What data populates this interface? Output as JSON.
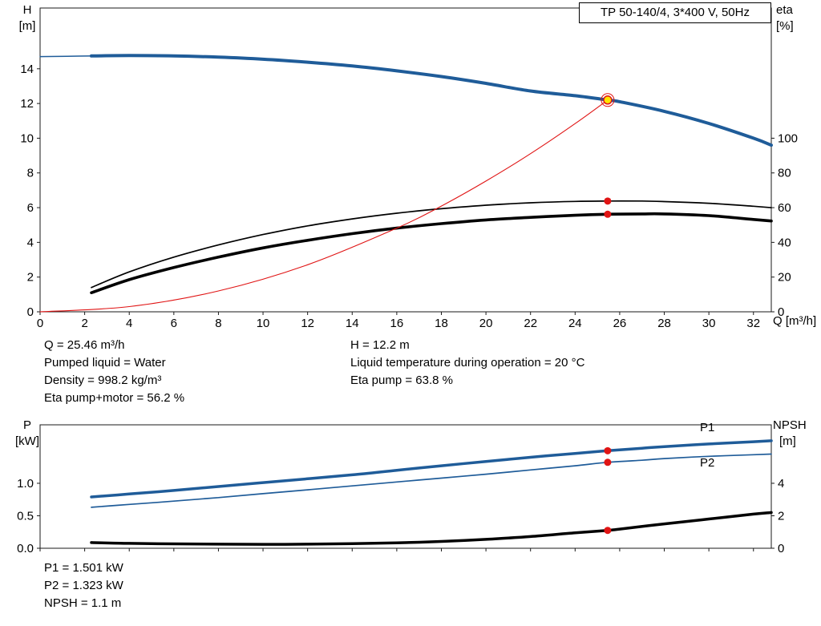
{
  "accent_colors": {
    "blue": "#1f5c99",
    "red": "#e01414",
    "black": "#000000",
    "marker_yellow": "#ffe400",
    "axis": "#1a1a1a"
  },
  "title_box": {
    "label": "TP 50-140/4, 3*400 V, 50Hz"
  },
  "axis_headers": {
    "top_left_1": "H",
    "top_left_2": "[m]",
    "top_right_1": "eta",
    "top_right_2": "[%]",
    "x_label": "Q [m³/h]",
    "bottom_left_1": "P",
    "bottom_left_2": "[kW]",
    "bottom_right_1": "NPSH",
    "bottom_right_2": "[m]"
  },
  "info_block": {
    "left": [
      "Q = 25.46 m³/h",
      "Pumped liquid = Water",
      "Density = 998.2 kg/m³",
      "Eta pump+motor = 56.2 %"
    ],
    "right": [
      "H = 12.2 m",
      "Liquid temperature during operation = 20 °C",
      "Eta pump = 63.8 %"
    ]
  },
  "result_block": {
    "lines": [
      "P1 = 1.501 kW",
      "P2 = 1.323 kW",
      "NPSH = 1.1 m"
    ]
  },
  "chart_data": [
    {
      "id": "qh-eta-chart",
      "type": "line",
      "title": "TP 50-140/4, 3*400 V, 50Hz",
      "xlabel": "Q [m³/h]",
      "ylabel_left": "H [m]",
      "ylabel_right": "eta [%]",
      "xlim": [
        0,
        32.8
      ],
      "ylim_left": [
        0,
        17.5
      ],
      "ylim_right": [
        0,
        175
      ],
      "grid": false,
      "x_ticks": [
        [
          0,
          "0"
        ],
        [
          2,
          "2"
        ],
        [
          4,
          "4"
        ],
        [
          6,
          "6"
        ],
        [
          8,
          "8"
        ],
        [
          10,
          "10"
        ],
        [
          12,
          "12"
        ],
        [
          14,
          "14"
        ],
        [
          16,
          "16"
        ],
        [
          18,
          "18"
        ],
        [
          20,
          "20"
        ],
        [
          22,
          "22"
        ],
        [
          24,
          "24"
        ],
        [
          26,
          "26"
        ],
        [
          28,
          "28"
        ],
        [
          30,
          "30"
        ],
        [
          32,
          "32"
        ]
      ],
      "left_ticks": [
        [
          0,
          "0"
        ],
        [
          2,
          "2"
        ],
        [
          4,
          "4"
        ],
        [
          6,
          "6"
        ],
        [
          8,
          "8"
        ],
        [
          10,
          "10"
        ],
        [
          12,
          "12"
        ],
        [
          14,
          "14"
        ]
      ],
      "right_ticks": [
        [
          0,
          "0"
        ],
        [
          20,
          "20"
        ],
        [
          40,
          "40"
        ],
        [
          60,
          "60"
        ],
        [
          80,
          "80"
        ],
        [
          100,
          "100"
        ]
      ],
      "series": [
        {
          "name": "qh-curve-lead",
          "color": "#1f5c99",
          "width": 1.5,
          "axis": "left",
          "points": [
            [
              0,
              14.7
            ],
            [
              1.2,
              14.72
            ],
            [
              2.5,
              14.74
            ]
          ]
        },
        {
          "name": "qh-curve",
          "color": "#1f5c99",
          "width": 4,
          "axis": "left",
          "points": [
            [
              2.3,
              14.74
            ],
            [
              4,
              14.76
            ],
            [
              6,
              14.74
            ],
            [
              8,
              14.67
            ],
            [
              10,
              14.55
            ],
            [
              12,
              14.38
            ],
            [
              14,
              14.16
            ],
            [
              16,
              13.88
            ],
            [
              18,
              13.55
            ],
            [
              20,
              13.16
            ],
            [
              22,
              12.72
            ],
            [
              24,
              12.45
            ],
            [
              25.46,
              12.2
            ],
            [
              26,
              12.1
            ],
            [
              28,
              11.55
            ],
            [
              30,
              10.85
            ],
            [
              32,
              10.0
            ],
            [
              32.8,
              9.6
            ]
          ]
        },
        {
          "name": "eta-pump-curve",
          "color": "#000000",
          "width": 1.7,
          "axis": "right",
          "points": [
            [
              2.3,
              14
            ],
            [
              4,
              23
            ],
            [
              6,
              31.5
            ],
            [
              8,
              38.5
            ],
            [
              10,
              44.5
            ],
            [
              12,
              49.5
            ],
            [
              14,
              53.5
            ],
            [
              16,
              56.8
            ],
            [
              18,
              59.4
            ],
            [
              20,
              61.4
            ],
            [
              22,
              62.8
            ],
            [
              24,
              63.6
            ],
            [
              25.46,
              63.8
            ],
            [
              27,
              63.8
            ],
            [
              28,
              63.5
            ],
            [
              30,
              62.5
            ],
            [
              32,
              60.8
            ],
            [
              32.8,
              60
            ]
          ]
        },
        {
          "name": "eta-pump-motor-curve",
          "color": "#000000",
          "width": 3.6,
          "axis": "right",
          "points": [
            [
              2.3,
              11
            ],
            [
              4,
              18.5
            ],
            [
              6,
              25.5
            ],
            [
              8,
              31.5
            ],
            [
              10,
              36.8
            ],
            [
              12,
              41.2
            ],
            [
              14,
              45
            ],
            [
              16,
              48.2
            ],
            [
              18,
              50.8
            ],
            [
              20,
              52.9
            ],
            [
              22,
              54.4
            ],
            [
              24,
              55.6
            ],
            [
              25.46,
              56.2
            ],
            [
              27,
              56.4
            ],
            [
              28,
              56.4
            ],
            [
              30,
              55.4
            ],
            [
              32,
              53.2
            ],
            [
              32.8,
              52.3
            ]
          ]
        },
        {
          "name": "system-curve",
          "color": "#e01414",
          "width": 1.1,
          "axis": "left",
          "points": [
            [
              0,
              0
            ],
            [
              4,
              0.3
            ],
            [
              8,
              1.2
            ],
            [
              12,
              2.71
            ],
            [
              16,
              4.82
            ],
            [
              18,
              6.09
            ],
            [
              20,
              7.53
            ],
            [
              22,
              9.11
            ],
            [
              24,
              10.84
            ],
            [
              25.46,
              12.2
            ]
          ]
        }
      ],
      "markers": [
        {
          "name": "duty-point",
          "x": 25.46,
          "y": 12.2,
          "axis": "left",
          "style": "duty"
        },
        {
          "name": "eta-pump-point",
          "x": 25.46,
          "y": 63.8,
          "axis": "right",
          "style": "dot"
        },
        {
          "name": "eta-pump-motor-point",
          "x": 25.46,
          "y": 56.2,
          "axis": "right",
          "style": "dot"
        }
      ],
      "annotations": []
    },
    {
      "id": "power-npsh-chart",
      "type": "line",
      "title": "",
      "xlabel": "Q [m³/h]",
      "ylabel_left": "P [kW]",
      "ylabel_right": "NPSH [m]",
      "xlim": [
        0,
        32.8
      ],
      "ylim_left": [
        0,
        1.9
      ],
      "ylim_right": [
        0,
        7.6
      ],
      "grid": false,
      "x_ticks": [
        [
          0,
          ""
        ],
        [
          2,
          ""
        ],
        [
          4,
          ""
        ],
        [
          6,
          ""
        ],
        [
          8,
          ""
        ],
        [
          10,
          ""
        ],
        [
          12,
          ""
        ],
        [
          14,
          ""
        ],
        [
          16,
          ""
        ],
        [
          18,
          ""
        ],
        [
          20,
          ""
        ],
        [
          22,
          ""
        ],
        [
          24,
          ""
        ],
        [
          26,
          ""
        ],
        [
          28,
          ""
        ],
        [
          30,
          ""
        ],
        [
          32,
          ""
        ]
      ],
      "left_ticks": [
        [
          0,
          "0.0"
        ],
        [
          0.5,
          "0.5"
        ],
        [
          1,
          "1.0"
        ]
      ],
      "right_ticks": [
        [
          0,
          "0"
        ],
        [
          2,
          "2"
        ],
        [
          4,
          "4"
        ]
      ],
      "series": [
        {
          "name": "p1-curve",
          "color": "#1f5c99",
          "width": 3.5,
          "axis": "left",
          "points": [
            [
              2.3,
              0.79
            ],
            [
              4,
              0.835
            ],
            [
              6,
              0.89
            ],
            [
              8,
              0.95
            ],
            [
              10,
              1.01
            ],
            [
              12,
              1.07
            ],
            [
              14,
              1.13
            ],
            [
              16,
              1.2
            ],
            [
              18,
              1.27
            ],
            [
              20,
              1.335
            ],
            [
              22,
              1.4
            ],
            [
              24,
              1.46
            ],
            [
              25.46,
              1.501
            ],
            [
              27,
              1.54
            ],
            [
              28,
              1.565
            ],
            [
              30,
              1.605
            ],
            [
              32,
              1.64
            ],
            [
              32.8,
              1.655
            ]
          ]
        },
        {
          "name": "p2-curve",
          "color": "#1f5c99",
          "width": 1.7,
          "axis": "left",
          "points": [
            [
              2.3,
              0.63
            ],
            [
              4,
              0.675
            ],
            [
              6,
              0.725
            ],
            [
              8,
              0.78
            ],
            [
              10,
              0.84
            ],
            [
              12,
              0.9
            ],
            [
              14,
              0.96
            ],
            [
              16,
              1.02
            ],
            [
              18,
              1.08
            ],
            [
              20,
              1.14
            ],
            [
              22,
              1.205
            ],
            [
              24,
              1.27
            ],
            [
              25.46,
              1.323
            ],
            [
              27,
              1.355
            ],
            [
              28,
              1.38
            ],
            [
              30,
              1.415
            ],
            [
              32,
              1.44
            ],
            [
              32.8,
              1.45
            ]
          ]
        },
        {
          "name": "npsh-curve",
          "color": "#000000",
          "width": 3.5,
          "axis": "right",
          "points": [
            [
              2.3,
              0.35
            ],
            [
              4,
              0.3
            ],
            [
              6,
              0.27
            ],
            [
              8,
              0.25
            ],
            [
              10,
              0.24
            ],
            [
              12,
              0.25
            ],
            [
              14,
              0.28
            ],
            [
              16,
              0.33
            ],
            [
              18,
              0.42
            ],
            [
              20,
              0.55
            ],
            [
              22,
              0.72
            ],
            [
              24,
              0.95
            ],
            [
              25.46,
              1.1
            ],
            [
              26,
              1.18
            ],
            [
              28,
              1.5
            ],
            [
              30,
              1.8
            ],
            [
              32,
              2.1
            ],
            [
              32.8,
              2.2
            ]
          ]
        }
      ],
      "markers": [
        {
          "name": "p1-point",
          "x": 25.46,
          "y": 1.501,
          "axis": "left",
          "style": "dot"
        },
        {
          "name": "p2-point",
          "x": 25.46,
          "y": 1.323,
          "axis": "left",
          "style": "dot"
        },
        {
          "name": "npsh-point",
          "x": 25.46,
          "y": 1.1,
          "axis": "right",
          "style": "dot"
        }
      ],
      "annotations": [
        {
          "name": "p1-curve-label",
          "text": "P1",
          "x": 29.6,
          "y": 1.8,
          "axis": "left",
          "color": "#1f5c99"
        },
        {
          "name": "p2-curve-label",
          "text": "P2",
          "x": 29.6,
          "y": 1.26,
          "axis": "left",
          "color": "#1f5c99"
        }
      ]
    }
  ]
}
